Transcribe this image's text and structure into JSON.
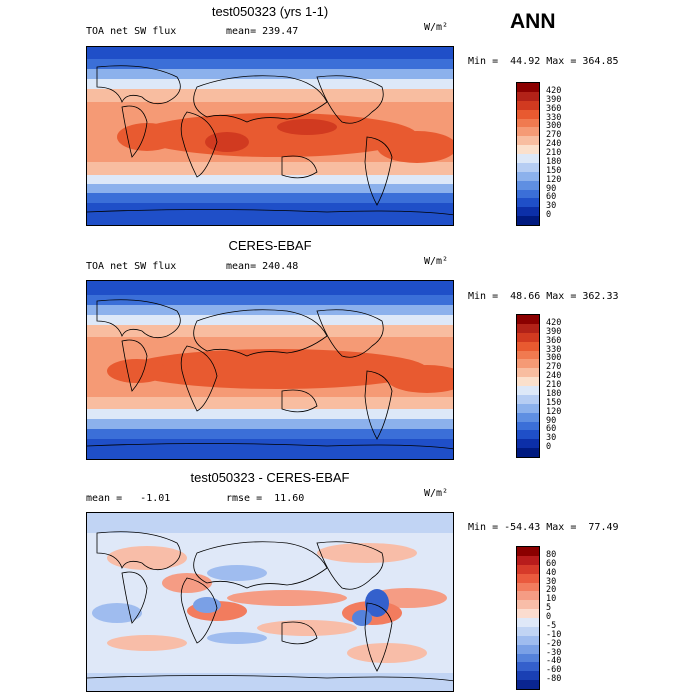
{
  "season": "ANN",
  "panels": [
    {
      "title": "test050323 (yrs 1-1)",
      "left_label": "TOA net SW flux",
      "mid_label": "mean= 239.47",
      "units": "W/m²",
      "minmax": "Min =  44.92 Max = 364.85",
      "cbar_labels": [
        "420",
        "390",
        "360",
        "330",
        "300",
        "270",
        "240",
        "210",
        "180",
        "150",
        "120",
        "90",
        "60",
        "30",
        "0"
      ],
      "cbar_colors": [
        "#8b0000",
        "#b22218",
        "#d13a20",
        "#e85a30",
        "#f07a50",
        "#f59a75",
        "#f8bda0",
        "#fbe0cc",
        "#dde8f8",
        "#b6cdf3",
        "#8cb1ec",
        "#5f8fe2",
        "#3b6fd8",
        "#1f4fc8",
        "#0c2fa8",
        "#001a80"
      ]
    },
    {
      "title": "CERES-EBAF",
      "left_label": "TOA net SW flux",
      "mid_label": "mean= 240.48",
      "units": "W/m²",
      "minmax": "Min =  48.66 Max = 362.33",
      "cbar_labels": [
        "420",
        "390",
        "360",
        "330",
        "300",
        "270",
        "240",
        "210",
        "180",
        "150",
        "120",
        "90",
        "60",
        "30",
        "0"
      ],
      "cbar_colors": [
        "#8b0000",
        "#b22218",
        "#d13a20",
        "#e85a30",
        "#f07a50",
        "#f59a75",
        "#f8bda0",
        "#fbe0cc",
        "#dde8f8",
        "#b6cdf3",
        "#8cb1ec",
        "#5f8fe2",
        "#3b6fd8",
        "#1f4fc8",
        "#0c2fa8",
        "#001a80"
      ]
    },
    {
      "title": "test050323 - CERES-EBAF",
      "left_label": "mean =   -1.01",
      "mid_label": "rmse =  11.60",
      "units": "W/m²",
      "minmax": "Min = -54.43 Max =  77.49",
      "cbar_labels": [
        "80",
        "60",
        "40",
        "30",
        "20",
        "10",
        "5",
        "0",
        "-5",
        "-10",
        "-20",
        "-30",
        "-40",
        "-60",
        "-80"
      ],
      "cbar_colors": [
        "#8b0000",
        "#b81c1c",
        "#d63a2a",
        "#ea5a3e",
        "#f27c5e",
        "#f59c84",
        "#f8bda8",
        "#fbdccf",
        "#dfe8f8",
        "#c1d4f4",
        "#9fbcef",
        "#7aa0e6",
        "#5582db",
        "#3460cc",
        "#1a40b4",
        "#0a2590"
      ]
    }
  ]
}
